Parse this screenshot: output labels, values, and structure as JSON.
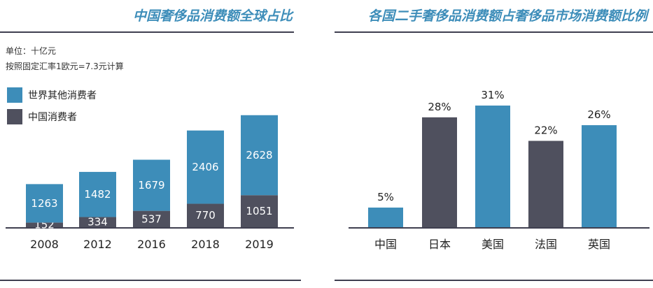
{
  "left_panel": {
    "title": "中国奢侈品消费额全球占比",
    "notes": [
      "单位：十亿元",
      "按照固定汇率1欧元=7.3元计算"
    ]
  },
  "right_panel": {
    "title": "各国二手奢侈品消费额占奢侈品市场消费额比例"
  },
  "colors": {
    "accent": "#3d8db9",
    "dark": "#4f505e",
    "line": "#3f3f50"
  },
  "chart_data": [
    {
      "type": "bar",
      "stacked": true,
      "title": "中国奢侈品消费额全球占比",
      "unit": "十亿元",
      "categories": [
        "2008",
        "2012",
        "2016",
        "2018",
        "2019"
      ],
      "series": [
        {
          "name": "中国消费者",
          "color": "#4f505e",
          "values": [
            152,
            334,
            537,
            770,
            1051
          ]
        },
        {
          "name": "世界其他消费者",
          "color": "#3d8db9",
          "values": [
            1263,
            1482,
            1679,
            2406,
            2628
          ]
        }
      ],
      "legend": [
        "世界其他消费者",
        "中国消费者"
      ],
      "ylim": [
        0,
        3800
      ]
    },
    {
      "type": "bar",
      "title": "各国二手奢侈品消费额占奢侈品市场消费额比例",
      "categories": [
        "中国",
        "日本",
        "美国",
        "法国",
        "英国"
      ],
      "values": [
        5,
        28,
        31,
        22,
        26
      ],
      "labels": [
        "5%",
        "28%",
        "31%",
        "22%",
        "26%"
      ],
      "colors": [
        "#3d8db9",
        "#4f505e",
        "#3d8db9",
        "#4f505e",
        "#3d8db9"
      ],
      "ylim": [
        0,
        31
      ]
    }
  ]
}
